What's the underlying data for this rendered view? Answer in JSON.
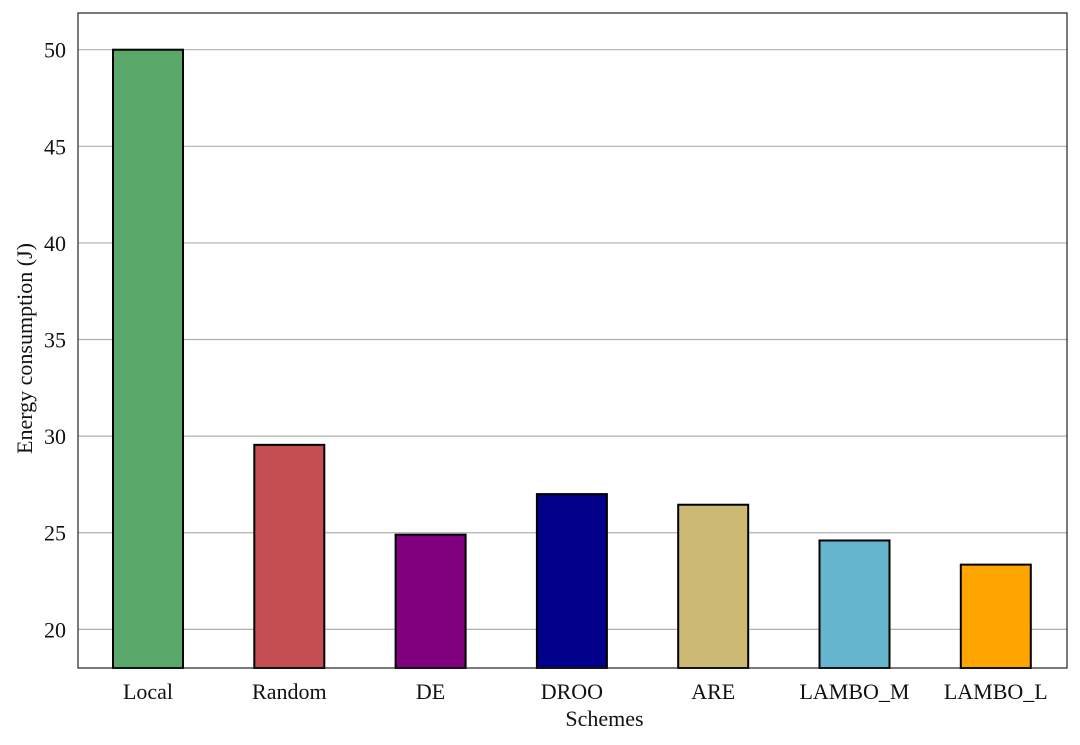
{
  "chart_data": {
    "type": "bar",
    "title": "",
    "xlabel": "Schemes",
    "ylabel": "Energy consumption (J)",
    "categories": [
      "Local",
      "Random",
      "DE",
      "DROO",
      "ARE",
      "LAMBO_M",
      "LAMBO_L"
    ],
    "values": [
      50.0,
      29.55,
      24.9,
      27.0,
      26.45,
      24.6,
      23.35
    ],
    "colors": [
      "#59a869",
      "#c44e52",
      "#800080",
      "#00008b",
      "#ccb974",
      "#64b5cd",
      "#ffa500"
    ],
    "ylim": [
      18,
      51.9
    ],
    "yticks": [
      20,
      25,
      30,
      35,
      40,
      45,
      50
    ],
    "grid": "horizontal",
    "legend": "none"
  }
}
